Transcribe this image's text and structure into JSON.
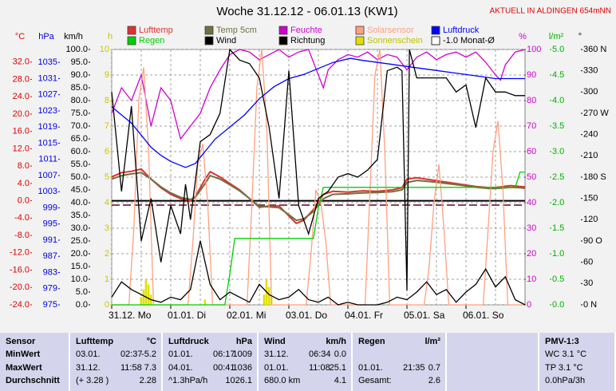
{
  "chart_data": {
    "type": "line",
    "title": "Woche 31.12.12 - 06.01.13 (KW1)",
    "subtitle": "AKTUELL IN ALDINGEN 654mNN",
    "xlim": [
      0,
      168
    ],
    "xticks": [
      {
        "value": 0,
        "label": "31.12. Mo"
      },
      {
        "value": 24,
        "label": "01.01. Di"
      },
      {
        "value": 48,
        "label": "02.01. Mi"
      },
      {
        "value": 72,
        "label": "03.01. Do"
      },
      {
        "value": 96,
        "label": "04.01. Fr"
      },
      {
        "value": 120,
        "label": "05.01. Sa"
      },
      {
        "value": 144,
        "label": "06.01. So"
      }
    ],
    "axes": [
      {
        "id": "c",
        "label": "°C",
        "color": "#e00000",
        "side": "left",
        "lim": [
          -24,
          34.9
        ],
        "ticks": [
          {
            "value": 32,
            "label": "32.0"
          },
          {
            "value": 28,
            "label": "28.0"
          },
          {
            "value": 24,
            "label": "24.0"
          },
          {
            "value": 20,
            "label": "20.0"
          },
          {
            "value": 16,
            "label": "16.0"
          },
          {
            "value": 12,
            "label": "12.0"
          },
          {
            "value": 8,
            "label": "8.0"
          },
          {
            "value": 4,
            "label": "4.0"
          },
          {
            "value": 0,
            "label": "0.0"
          },
          {
            "value": -4,
            "label": "-4.0"
          },
          {
            "value": -8,
            "label": "-8.0"
          },
          {
            "value": -12,
            "label": "-12.0"
          },
          {
            "value": -16,
            "label": "-16.0"
          },
          {
            "value": -20,
            "label": "-20.0"
          },
          {
            "value": -24,
            "label": "-24.0"
          }
        ]
      },
      {
        "id": "p",
        "label": "hPa",
        "color": "#0000e0",
        "side": "left",
        "lim": [
          975,
          1038.2
        ],
        "ticks": [
          1035,
          1031,
          1027,
          1023,
          1019,
          1015,
          1011,
          1007,
          1003,
          999,
          995,
          991,
          987,
          983,
          979,
          975
        ]
      },
      {
        "id": "k",
        "label": "km/h",
        "color": "#000000",
        "side": "left",
        "lim": [
          0,
          100
        ],
        "ticks": [
          {
            "value": 100,
            "label": "100.0"
          },
          {
            "value": 95,
            "label": "95.0"
          },
          {
            "value": 90,
            "label": "90.0"
          },
          {
            "value": 85,
            "label": "85.0"
          },
          {
            "value": 80,
            "label": "80.0"
          },
          {
            "value": 75,
            "label": "75.0"
          },
          {
            "value": 70,
            "label": "70.0"
          },
          {
            "value": 65,
            "label": "65.0"
          },
          {
            "value": 60,
            "label": "60.0"
          },
          {
            "value": 55,
            "label": "55.0"
          },
          {
            "value": 50,
            "label": "50.0"
          },
          {
            "value": 45,
            "label": "45.0"
          },
          {
            "value": 40,
            "label": "40.0"
          },
          {
            "value": 35,
            "label": "35.0"
          },
          {
            "value": 30,
            "label": "30.0"
          },
          {
            "value": 25,
            "label": "25.0"
          },
          {
            "value": 20,
            "label": "20.0"
          },
          {
            "value": 15,
            "label": "15.0"
          },
          {
            "value": 10,
            "label": "10.0"
          },
          {
            "value": 5,
            "label": "5.0"
          },
          {
            "value": 0,
            "label": "0.0"
          }
        ]
      },
      {
        "id": "h",
        "label": "h",
        "color": "#c8c800",
        "side": "left",
        "lim": [
          0,
          10
        ],
        "ticks": [
          10,
          9,
          8,
          7,
          6,
          5,
          4,
          3,
          2,
          1,
          0
        ]
      },
      {
        "id": "pct",
        "label": "%",
        "color": "#d000d0",
        "side": "right",
        "lim": [
          0,
          100
        ],
        "grid": true,
        "ticks": [
          100,
          90,
          80,
          70,
          60,
          50,
          40,
          30,
          20,
          10,
          0
        ]
      },
      {
        "id": "r",
        "label": "l/m²",
        "color": "#00b000",
        "side": "right",
        "lim": [
          0,
          5
        ],
        "ticks": [
          {
            "value": 5,
            "label": "5.0"
          },
          4.5,
          {
            "value": 4,
            "label": "4.0"
          },
          3.5,
          {
            "value": 3,
            "label": "3.0"
          },
          2.5,
          {
            "value": 2,
            "label": "2.0"
          },
          1.5,
          {
            "value": 1,
            "label": "1.0"
          },
          0.5,
          {
            "value": 0,
            "label": "0.0"
          }
        ]
      },
      {
        "id": "d",
        "label": "°",
        "color": "#000000",
        "side": "right",
        "lim": [
          0,
          360
        ],
        "ticks": [
          {
            "value": 360,
            "label": "360 N"
          },
          330,
          300,
          {
            "value": 270,
            "label": "270 W"
          },
          240,
          210,
          {
            "value": 180,
            "label": "180 S"
          },
          150,
          120,
          {
            "value": 90,
            "label": "90 O"
          },
          60,
          30,
          {
            "value": 0,
            "label": "0 N"
          }
        ]
      }
    ],
    "reference_lines": [
      {
        "axis": "c",
        "value": 0,
        "color": "#000000"
      }
    ],
    "series": [
      {
        "name": "Lufttemp",
        "color": "#e03030",
        "axis": "c",
        "kind": "line",
        "x": [
          0,
          4,
          8,
          12,
          16,
          20,
          24,
          28,
          32,
          34,
          38,
          40,
          44,
          48,
          52,
          56,
          60,
          64,
          68,
          72,
          75,
          78,
          82,
          86,
          90,
          96,
          102,
          108,
          114,
          118,
          120,
          124,
          130,
          136,
          142,
          148,
          154,
          158,
          162,
          166,
          168
        ],
        "values": [
          5.5,
          6.5,
          6.8,
          7.3,
          5,
          3,
          1.5,
          0.5,
          0,
          1,
          5,
          6.7,
          5.5,
          4,
          2.5,
          0.5,
          -1.5,
          -1.2,
          -1.2,
          -3.5,
          -5.2,
          -4.5,
          -2,
          1.5,
          2.2,
          2,
          2.3,
          2.2,
          2.5,
          3,
          5,
          5.3,
          4.8,
          4.3,
          3.8,
          3.3,
          3,
          3.2,
          3.5,
          3.3,
          3.2
        ]
      },
      {
        "name": "Temp 5cm",
        "color": "#707040",
        "axis": "c",
        "kind": "line",
        "x": [
          0,
          4,
          8,
          12,
          16,
          20,
          24,
          28,
          32,
          34,
          38,
          40,
          44,
          48,
          52,
          56,
          60,
          64,
          68,
          72,
          75,
          78,
          82,
          86,
          90,
          96,
          102,
          108,
          114,
          118,
          120,
          124,
          130,
          136,
          142,
          148,
          154,
          158,
          162,
          166,
          168
        ],
        "values": [
          5,
          5.8,
          6.2,
          6.5,
          5,
          3.2,
          1.8,
          0.8,
          0.3,
          0.8,
          4,
          5.8,
          5,
          3.7,
          2.3,
          0.5,
          -1.3,
          -1.4,
          -1.6,
          -3.2,
          -4.5,
          -4.2,
          -2.5,
          0.5,
          1.5,
          1.6,
          1.8,
          1.9,
          2.1,
          2.5,
          4.2,
          4.7,
          4.4,
          4,
          3.6,
          3.1,
          2.8,
          2.9,
          3.1,
          3,
          2.9
        ]
      },
      {
        "name": "Feuchte",
        "color": "#d000d0",
        "axis": "pct",
        "kind": "line",
        "x": [
          0,
          4,
          8,
          12,
          16,
          20,
          24,
          28,
          32,
          36,
          40,
          44,
          48,
          52,
          56,
          60,
          64,
          68,
          72,
          76,
          80,
          84,
          86,
          88,
          92,
          96,
          100,
          104,
          108,
          112,
          116,
          120,
          124,
          128,
          132,
          136,
          140,
          144,
          148,
          152,
          156,
          158,
          160,
          164,
          168
        ],
        "values": [
          75,
          85,
          80,
          90,
          70,
          85,
          80,
          65,
          70,
          75,
          85,
          92,
          98,
          100,
          99,
          96,
          98,
          100,
          97,
          99,
          100,
          90,
          85,
          92,
          96,
          98,
          97,
          99,
          96,
          98,
          97,
          92,
          97,
          99,
          96,
          98,
          99,
          97,
          99,
          95,
          90,
          88,
          94,
          99,
          100
        ]
      },
      {
        "name": "Solarsensor",
        "color": "#ffa080",
        "axis": "pct",
        "kind": "line",
        "x": [
          0,
          7,
          9,
          11,
          13,
          15,
          17,
          31,
          33,
          35,
          37,
          39,
          41,
          55,
          57,
          59,
          61,
          63,
          65,
          79,
          81,
          83,
          85,
          87,
          89,
          103,
          105,
          107,
          109,
          111,
          113,
          127,
          129,
          131,
          133,
          135,
          137,
          151,
          153,
          155,
          157,
          159,
          161,
          168
        ],
        "values": [
          0,
          0,
          30,
          80,
          93,
          60,
          0,
          0,
          25,
          55,
          63,
          40,
          0,
          0,
          40,
          85,
          100,
          70,
          0,
          0,
          20,
          45,
          40,
          25,
          0,
          0,
          45,
          90,
          100,
          60,
          0,
          0,
          15,
          40,
          55,
          30,
          0,
          0,
          30,
          60,
          72,
          45,
          0,
          0
        ]
      },
      {
        "name": "Luftdruck",
        "color": "#0000ff",
        "axis": "p",
        "kind": "line",
        "x": [
          0,
          4,
          8,
          12,
          16,
          20,
          24,
          28,
          30,
          34,
          38,
          42,
          48,
          54,
          60,
          66,
          72,
          78,
          84,
          90,
          97,
          102,
          108,
          114,
          120,
          126,
          132,
          138,
          144,
          150,
          156,
          162,
          168
        ],
        "values": [
          1024,
          1022,
          1020,
          1017,
          1014,
          1012,
          1010.5,
          1009.5,
          1009,
          1010,
          1013,
          1016,
          1019,
          1022,
          1026,
          1029,
          1031,
          1032,
          1033.5,
          1035,
          1036,
          1035.5,
          1035,
          1034.5,
          1034,
          1033.5,
          1033,
          1032.5,
          1032,
          1031.5,
          1031,
          1031,
          1031
        ]
      },
      {
        "name": "Regen",
        "color": "#00d000",
        "axis": "r",
        "kind": "line",
        "x": [
          0,
          46,
          48,
          50,
          82,
          84,
          86,
          164,
          166,
          168
        ],
        "values": [
          0,
          0,
          0.6,
          1.3,
          1.3,
          1.9,
          2.3,
          2.3,
          2.6,
          2.6
        ]
      },
      {
        "name": "Wind",
        "color": "#000000",
        "axis": "k",
        "kind": "line",
        "x": [
          0,
          4,
          8,
          12,
          16,
          20,
          24,
          28,
          32,
          36,
          40,
          44,
          48,
          52,
          56,
          60,
          64,
          68,
          72,
          76,
          80,
          84,
          88,
          92,
          96,
          100,
          104,
          108,
          112,
          116,
          120,
          124,
          128,
          132,
          136,
          140,
          144,
          148,
          152,
          156,
          160,
          164,
          168
        ],
        "values": [
          3,
          9,
          6,
          4,
          2,
          1,
          3,
          2,
          6,
          25.1,
          8,
          2,
          5,
          3,
          1,
          8,
          4,
          2,
          3,
          6,
          2,
          1,
          3,
          0,
          1,
          0,
          0,
          0,
          1,
          3,
          2,
          5,
          9,
          4,
          6,
          1,
          5,
          8,
          14,
          7,
          11,
          2,
          0
        ]
      },
      {
        "name": "Richtung",
        "color": "#000000",
        "axis": "d",
        "kind": "line",
        "x": [
          0,
          4,
          8,
          12,
          16,
          20,
          24,
          28,
          30,
          32,
          36,
          40,
          44,
          48,
          52,
          56,
          60,
          64,
          68,
          72,
          76,
          80,
          84,
          88,
          92,
          96,
          100,
          104,
          108,
          112,
          116,
          118,
          120,
          121,
          124,
          128,
          132,
          136,
          140,
          144,
          148,
          152,
          156,
          160,
          164,
          168
        ],
        "values": [
          300,
          160,
          280,
          90,
          150,
          60,
          140,
          100,
          170,
          120,
          230,
          240,
          270,
          360,
          345,
          340,
          320,
          250,
          150,
          330,
          140,
          100,
          150,
          160,
          180,
          185,
          180,
          190,
          205,
          330,
          335,
          330,
          20,
          360,
          320,
          320,
          320,
          320,
          300,
          310,
          250,
          320,
          300,
          300,
          295,
          295
        ]
      },
      {
        "name": "Sonnenschein",
        "color": "#e0e000",
        "axis": "h",
        "kind": "bar",
        "x": [
          12,
          13,
          14,
          15,
          16,
          38,
          62,
          63,
          64,
          65
        ],
        "values": [
          0.3,
          0.6,
          1.0,
          0.8,
          0.4,
          0.2,
          0.4,
          1.0,
          0.7,
          0.3
        ]
      },
      {
        "name": "-1.0 Monat-Ø",
        "color": "#600020",
        "axis": "c",
        "kind": "hline",
        "value": -1.0
      }
    ]
  },
  "table": {
    "header": [
      [
        "Sensor"
      ],
      [
        "Lufttemp",
        "°C"
      ],
      [
        "Luftdruck",
        "hPa"
      ],
      [
        "Wind",
        "km/h"
      ],
      [
        "Regen",
        "l/m²"
      ],
      [],
      [
        "PMV-1:3"
      ]
    ],
    "rows": [
      [
        [
          "MinWert"
        ],
        [
          "03.01.",
          "02:37",
          "-5.2"
        ],
        [
          "01.01.",
          "06:17",
          "1009"
        ],
        [
          "31.12.",
          "06:34",
          "0.0"
        ],
        [],
        [],
        [
          "WC 3.1 °C"
        ]
      ],
      [
        [
          "MaxWert"
        ],
        [
          "31.12.",
          "11:58",
          "7.3"
        ],
        [
          "04.01.",
          "00:41",
          "1036"
        ],
        [
          "01.01.",
          "11:08",
          "25.1"
        ],
        [
          "01.01.",
          "21:35",
          "0.7"
        ],
        [],
        [
          "TP 3.1 °C"
        ]
      ],
      [
        [
          "Durchschnitt"
        ],
        [
          "(+ 3.28 )",
          "2.28"
        ],
        [
          "^1.3hPa/h",
          "1026.1"
        ],
        [
          "680.0 km",
          "4.1"
        ],
        [
          "Gesamt:",
          "2.6"
        ],
        [],
        [
          "0.0hPa/3h"
        ]
      ]
    ]
  }
}
